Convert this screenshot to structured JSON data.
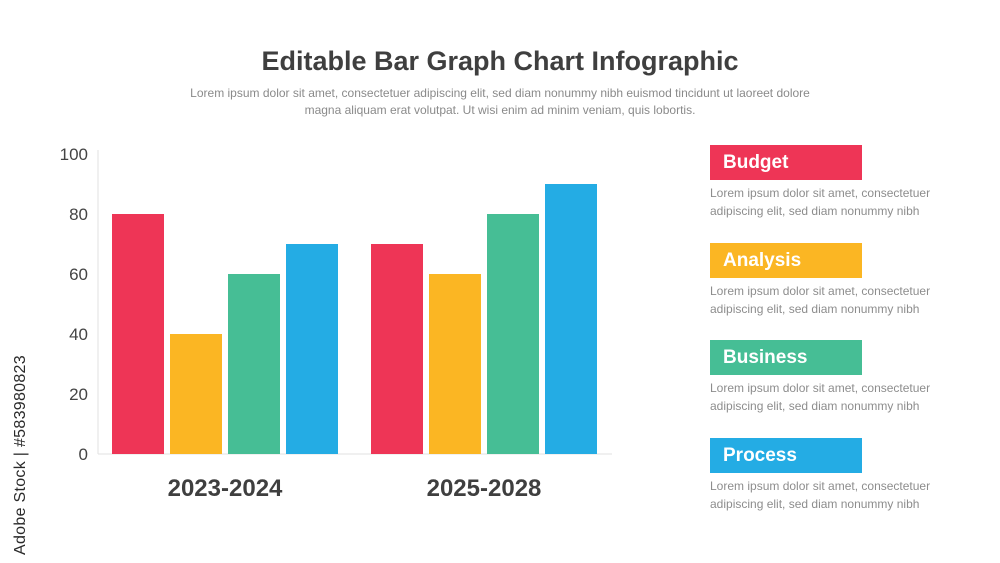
{
  "header": {
    "title": "Editable Bar Graph Chart Infographic",
    "subtitle": "Lorem ipsum dolor sit amet, consectetuer adipiscing elit, sed diam nonummy nibh euismod tincidunt ut laoreet dolore magna aliquam erat volutpat. Ut wisi enim ad minim veniam, quis lobortis."
  },
  "chart_data": {
    "type": "bar",
    "title": "Editable Bar Graph Chart Infographic",
    "categories": [
      "2023-2024",
      "2025-2028"
    ],
    "series": [
      {
        "name": "Budget",
        "color": "#ee3556",
        "values": [
          80,
          70
        ]
      },
      {
        "name": "Analysis",
        "color": "#fbb623",
        "values": [
          40,
          60
        ]
      },
      {
        "name": "Business",
        "color": "#46be95",
        "values": [
          60,
          80
        ]
      },
      {
        "name": "Process",
        "color": "#24ace4",
        "values": [
          70,
          90
        ]
      }
    ],
    "yticks": [
      "0",
      "20",
      "40",
      "60",
      "80",
      "100"
    ],
    "ylim": [
      0,
      100
    ],
    "xlabel": "",
    "ylabel": "",
    "grid": false,
    "legend_position": "right"
  },
  "legend": [
    {
      "label": "Budget",
      "color": "#ee3556",
      "desc": "Lorem ipsum dolor sit amet, consectetuer adipiscing elit, sed diam nonummy nibh"
    },
    {
      "label": "Analysis",
      "color": "#fbb623",
      "desc": "Lorem ipsum dolor sit amet, consectetuer adipiscing elit, sed diam nonummy nibh"
    },
    {
      "label": "Business",
      "color": "#46be95",
      "desc": "Lorem ipsum dolor sit amet, consectetuer adipiscing elit, sed diam nonummy nibh"
    },
    {
      "label": "Process",
      "color": "#24ace4",
      "desc": "Lorem ipsum dolor sit amet, consectetuer adipiscing elit, sed diam nonummy nibh"
    }
  ],
  "watermark": {
    "text": "Adobe Stock | #583980823"
  }
}
